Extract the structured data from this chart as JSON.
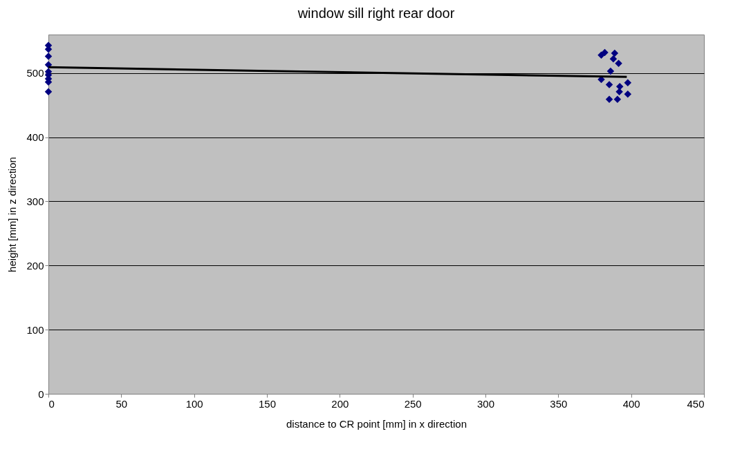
{
  "chart_data": {
    "type": "scatter",
    "title": "window sill right rear door",
    "xlabel": "distance to CR point [mm] in x direction",
    "ylabel": "height [mm] in z direction",
    "xlim": [
      0,
      450
    ],
    "xticks": [
      0,
      50,
      100,
      150,
      200,
      250,
      300,
      350,
      400,
      450
    ],
    "ylim": [
      0,
      560
    ],
    "yticks": [
      0,
      100,
      200,
      300,
      400,
      500
    ],
    "grid": "y",
    "marker": "diamond",
    "series": [
      {
        "color": "#000080",
        "x": [
          0,
          0,
          0,
          0,
          0,
          0,
          0,
          0,
          0,
          379.5,
          381.9,
          388.7,
          387.8,
          391.4,
          385.9,
          379.5,
          385,
          392.2,
          397.7,
          391.9,
          397.7,
          385,
          390.6
        ],
        "values": [
          543,
          537,
          526,
          513,
          502,
          497,
          491,
          486,
          471,
          528,
          532,
          531,
          522,
          515,
          503,
          490,
          482,
          479,
          485,
          471,
          467,
          459,
          459
        ]
      },
      {
        "type": "line",
        "color": "#000000",
        "x": [
          0,
          397
        ],
        "values": [
          509,
          494
        ],
        "line_style": "solid",
        "marker": "none"
      }
    ]
  }
}
